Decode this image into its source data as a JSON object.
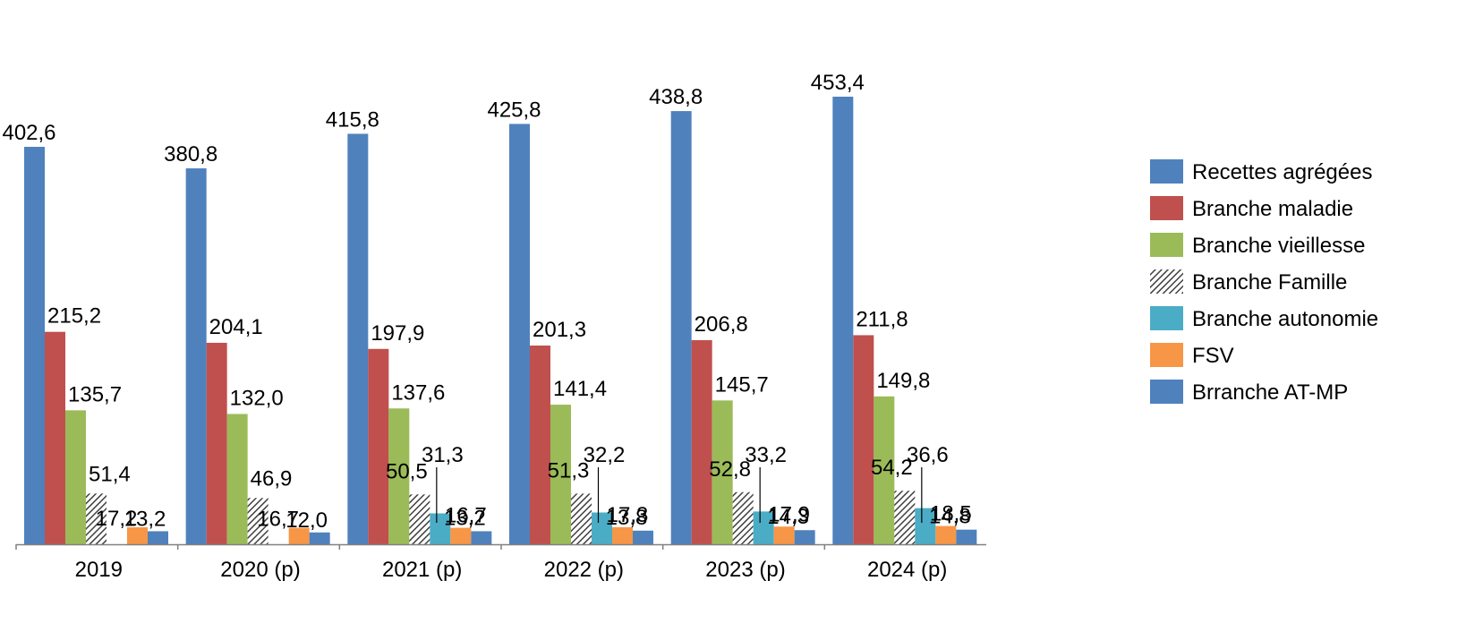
{
  "chart_data": {
    "type": "bar",
    "title": "",
    "xlabel": "",
    "ylabel": "",
    "ylim": [
      0,
      460
    ],
    "grid": false,
    "legend_position": "right",
    "categories": [
      "2019",
      "2020 (p)",
      "2021 (p)",
      "2022 (p)",
      "2023 (p)",
      "2024 (p)"
    ],
    "series": [
      {
        "name": "Recettes agrégées",
        "color": "#4F81BD",
        "pattern": "solid",
        "values": [
          402.6,
          380.8,
          415.8,
          425.8,
          438.8,
          453.4
        ],
        "labels": [
          "402,6",
          "380,8",
          "415,8",
          "425,8",
          "438,8",
          "453,4"
        ]
      },
      {
        "name": "Branche maladie",
        "color": "#C0504D",
        "pattern": "solid",
        "values": [
          215.2,
          204.1,
          197.9,
          201.3,
          206.8,
          211.8
        ],
        "labels": [
          "215,2",
          "204,1",
          "197,9",
          "201,3",
          "206,8",
          "211,8"
        ]
      },
      {
        "name": "Branche vieillesse",
        "color": "#9BBB59",
        "pattern": "solid",
        "values": [
          135.7,
          132.0,
          137.6,
          141.4,
          145.7,
          149.8
        ],
        "labels": [
          "135,7",
          "132,0",
          "137,6",
          "141,4",
          "145,7",
          "149,8"
        ]
      },
      {
        "name": "Branche Famille",
        "color": "#404040",
        "pattern": "hatch",
        "values": [
          51.4,
          46.9,
          50.5,
          51.3,
          52.8,
          54.2
        ],
        "labels": [
          "51,4",
          "46,9",
          "50,5",
          "51,3",
          "52,8",
          "54,2"
        ]
      },
      {
        "name": "Branche autonomie",
        "color": "#4BACC6",
        "pattern": "solid",
        "values": [
          null,
          null,
          31.3,
          32.2,
          33.2,
          36.6
        ],
        "labels": [
          null,
          null,
          "31,3",
          "32,2",
          "33,2",
          "36,6"
        ]
      },
      {
        "name": "FSV",
        "color": "#F79646",
        "pattern": "solid",
        "values": [
          17.2,
          16.7,
          16.7,
          17.3,
          17.9,
          18.5
        ],
        "labels": [
          "17,2",
          "16,7",
          "16,7",
          "17,3",
          "17,9",
          "18,5"
        ]
      },
      {
        "name": "Brranche AT-MP",
        "color": "#4F81BD",
        "pattern": "solid",
        "values": [
          13.2,
          12.0,
          13.2,
          13.8,
          14.3,
          14.8
        ],
        "labels": [
          "13,2",
          "12,0",
          "13,2",
          "13,8",
          "14,3",
          "14,8"
        ]
      }
    ]
  }
}
